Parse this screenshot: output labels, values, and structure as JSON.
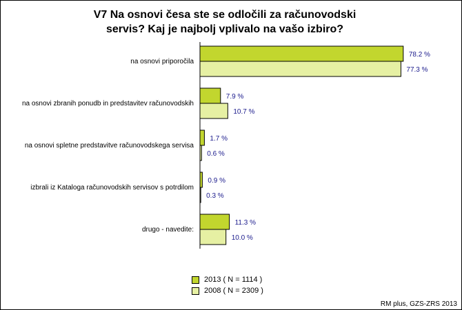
{
  "chart_data": {
    "type": "bar",
    "orientation": "horizontal",
    "title": "V7 Na osnovi česa ste se odločili za računovodski servis? Kaj je najbolj vplivalo na vašo izbiro?",
    "title_lines": [
      "V7 Na osnovi česa ste se odločili za računovodski",
      "servis? Kaj je najbolj vplivalo na vašo izbiro?"
    ],
    "categories": [
      "na osnovi priporočila",
      "na osnovi zbranih ponudb in predstavitev računovodskih",
      "na osnovi spletne predstavitve računovodskega servisa",
      "izbrali iz Kataloga računovodskih servisov s potrdilom",
      "drugo - navedite:"
    ],
    "series": [
      {
        "name": "2013 ( N = 1114 )",
        "color": "#c2d62e",
        "values": [
          78.2,
          7.9,
          1.7,
          0.9,
          11.3
        ],
        "labels": [
          "78.2 %",
          "7.9 %",
          "1.7 %",
          "0.9 %",
          "11.3 %"
        ]
      },
      {
        "name": "2008 ( N = 2309 )",
        "color": "#e6f0a3",
        "values": [
          77.3,
          10.7,
          0.6,
          0.3,
          10.0
        ],
        "labels": [
          "77.3 %",
          "10.7 %",
          "0.6 %",
          "0.3 %",
          "10.0 %"
        ]
      }
    ],
    "xlim": [
      0,
      80
    ],
    "grid": false,
    "legend_position": "bottom"
  },
  "source": "RM plus, GZS-ZRS 2013"
}
